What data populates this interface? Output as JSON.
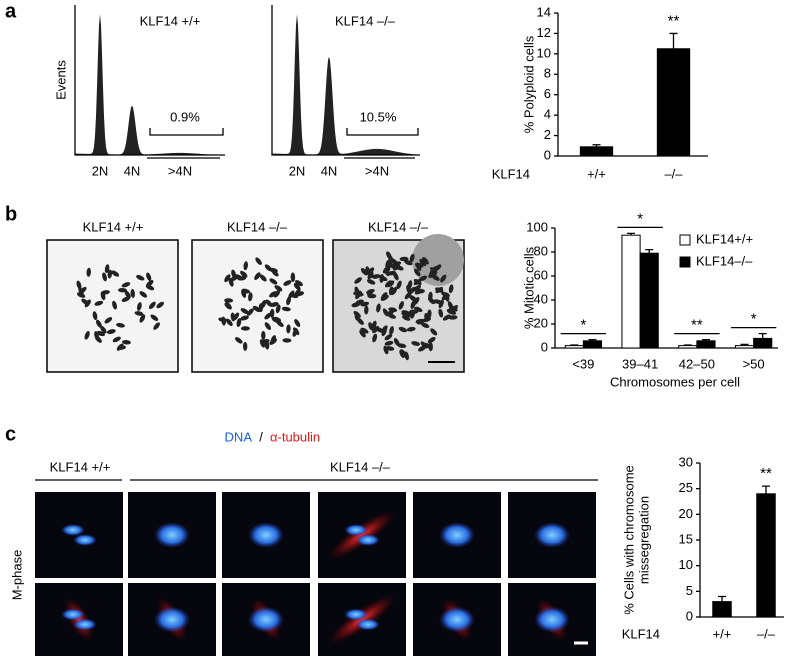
{
  "panels": {
    "a": "a",
    "b": "b",
    "c": "c"
  },
  "flow": [
    {
      "title": "KLF14 +/+",
      "ylabel": "Events",
      "percent": "0.9%",
      "labels": [
        "2N",
        "4N",
        ">4N"
      ]
    },
    {
      "title": "KLF14 –/–",
      "percent": "10.5%",
      "labels": [
        "2N",
        "4N",
        ">4N"
      ]
    }
  ],
  "karyotype": [
    "KLF14 +/+",
    "KLF14 –/–",
    "KLF14 –/–"
  ],
  "imaging": {
    "dna": "DNA",
    "separator": "/",
    "tubulin": "α-tubulin",
    "group1": "KLF14 +/+",
    "group2": "KLF14 –/–",
    "row_label": "M-phase"
  },
  "chart_data": [
    {
      "type": "bar",
      "ylabel": [
        "% Polyploid cells"
      ],
      "xlabel": "KLF14",
      "categories": [
        "+/+",
        "–/–"
      ],
      "values": [
        0.9,
        10.5
      ],
      "errors": [
        0.2,
        1.5
      ],
      "significance": [
        null,
        "**"
      ],
      "color": "#000000",
      "ylim": [
        0,
        14
      ],
      "yticks": [
        0,
        2,
        4,
        6,
        8,
        10,
        12,
        14
      ]
    },
    {
      "type": "bar",
      "ylabel": [
        "% Mitotic cells"
      ],
      "xlabel": "Chromosomes per cell",
      "categories": [
        "<39",
        "39–41",
        "42–50",
        ">50"
      ],
      "series": [
        {
          "name": "KLF14+/+",
          "color": "#ffffff",
          "values": [
            2,
            94,
            2,
            2
          ],
          "errors": [
            0.5,
            1.5,
            0.5,
            1
          ]
        },
        {
          "name": "KLF14–/–",
          "color": "#000000",
          "values": [
            6,
            79,
            6,
            8
          ],
          "errors": [
            1,
            3,
            1,
            4
          ]
        }
      ],
      "significance": [
        "*",
        "*",
        "**",
        "*"
      ],
      "legend": "top-right",
      "ylim": [
        0,
        100
      ],
      "yticks": [
        0,
        20,
        40,
        60,
        80,
        100
      ]
    },
    {
      "type": "bar",
      "ylabel": [
        "% Cells with chromosome",
        "missegregation"
      ],
      "xlabel": "KLF14",
      "categories": [
        "+/+",
        "–/–"
      ],
      "values": [
        3,
        24
      ],
      "errors": [
        1,
        1.5
      ],
      "significance": [
        null,
        "**"
      ],
      "color": "#000000",
      "ylim": [
        0,
        30
      ],
      "yticks": [
        0,
        5,
        10,
        15,
        20,
        25,
        30
      ]
    }
  ]
}
